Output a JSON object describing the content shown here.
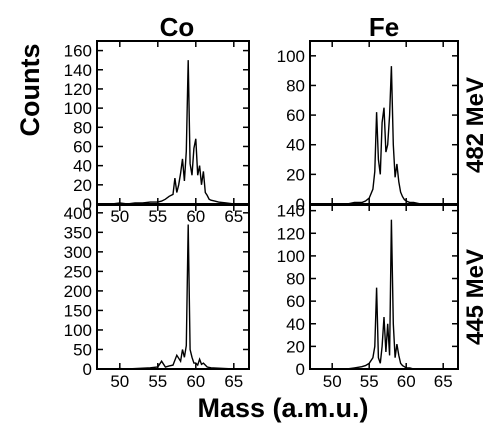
{
  "figure": {
    "column_titles": [
      "Co",
      "Fe"
    ],
    "row_labels": [
      "482 MeV",
      "445 MeV"
    ],
    "ylabel": "Counts",
    "xlabel": "Mass (a.m.u.)"
  },
  "chart_data": [
    {
      "type": "line",
      "title": "Co",
      "row_label": "482 MeV",
      "xlim": [
        47,
        67
      ],
      "ylim": [
        0,
        170
      ],
      "xticks": [
        50,
        55,
        60,
        65
      ],
      "yticks": [
        0,
        20,
        40,
        60,
        80,
        100,
        120,
        140,
        160
      ],
      "show_x_tick_labels": true,
      "series": [
        {
          "x": [
            48,
            49,
            50,
            51,
            52,
            53,
            54,
            55,
            55.5,
            56,
            56.5,
            57,
            57.25,
            57.5,
            57.75,
            58,
            58.25,
            58.5,
            58.75,
            59,
            59.25,
            59.5,
            59.75,
            60,
            60.25,
            60.5,
            60.75,
            61,
            61.25,
            61.5,
            61.75,
            62,
            62.5,
            63,
            64,
            65,
            66
          ],
          "y": [
            0,
            0,
            1,
            0,
            1,
            1,
            2,
            2,
            3,
            5,
            8,
            10,
            27,
            12,
            20,
            32,
            47,
            24,
            55,
            150,
            42,
            30,
            58,
            68,
            30,
            40,
            20,
            34,
            12,
            9,
            5,
            4,
            3,
            2,
            1,
            0,
            0
          ]
        }
      ]
    },
    {
      "type": "line",
      "title": "Fe",
      "row_label": "482 MeV",
      "xlim": [
        47,
        67
      ],
      "ylim": [
        0,
        110
      ],
      "xticks": [
        50,
        55,
        60,
        65
      ],
      "yticks": [
        0,
        20,
        40,
        60,
        80,
        100
      ],
      "show_x_tick_labels": false,
      "series": [
        {
          "x": [
            48,
            50,
            52,
            53,
            54,
            54.5,
            55,
            55.5,
            55.75,
            56,
            56.25,
            56.5,
            56.75,
            57,
            57.25,
            57.5,
            57.75,
            58,
            58.25,
            58.5,
            58.75,
            59,
            59.25,
            59.5,
            59.75,
            60,
            60.5,
            61,
            62,
            63,
            64,
            66
          ],
          "y": [
            0,
            0,
            0,
            1,
            1,
            2,
            4,
            10,
            22,
            62,
            30,
            20,
            55,
            65,
            35,
            40,
            60,
            93,
            40,
            18,
            27,
            15,
            8,
            5,
            3,
            2,
            1,
            1,
            0,
            0,
            0,
            0
          ]
        }
      ]
    },
    {
      "type": "line",
      "title": "",
      "row_label": "445 MeV",
      "xlim": [
        47,
        67
      ],
      "ylim": [
        0,
        420
      ],
      "xticks": [
        50,
        55,
        60,
        65
      ],
      "yticks": [
        0,
        50,
        100,
        150,
        200,
        250,
        300,
        350,
        400
      ],
      "show_x_tick_labels": true,
      "series": [
        {
          "x": [
            48,
            49,
            50,
            51,
            52,
            53,
            54,
            55,
            55.5,
            56,
            56.5,
            57,
            57.5,
            58,
            58.25,
            58.5,
            58.75,
            59,
            59.25,
            59.5,
            59.75,
            60,
            60.25,
            60.5,
            60.75,
            61,
            61.5,
            62,
            63,
            64,
            65,
            66
          ],
          "y": [
            0,
            0,
            1,
            0,
            1,
            2,
            3,
            5,
            20,
            5,
            8,
            10,
            35,
            20,
            50,
            30,
            60,
            370,
            50,
            30,
            15,
            15,
            10,
            25,
            12,
            15,
            5,
            3,
            2,
            1,
            0,
            0
          ]
        }
      ]
    },
    {
      "type": "line",
      "title": "",
      "row_label": "445 MeV",
      "xlim": [
        47,
        67
      ],
      "ylim": [
        0,
        145
      ],
      "xticks": [
        50,
        55,
        60,
        65
      ],
      "yticks": [
        0,
        20,
        40,
        60,
        80,
        100,
        120,
        140
      ],
      "show_x_tick_labels": true,
      "series": [
        {
          "x": [
            48,
            50,
            52,
            53,
            54,
            54.5,
            55,
            55.5,
            55.75,
            56,
            56.25,
            56.5,
            56.75,
            57,
            57.25,
            57.5,
            57.75,
            58,
            58.25,
            58.5,
            58.75,
            59,
            59.25,
            59.5,
            59.75,
            60,
            60.5,
            61,
            62,
            63,
            64,
            66
          ],
          "y": [
            0,
            0,
            0,
            1,
            2,
            3,
            5,
            10,
            20,
            72,
            10,
            5,
            20,
            46,
            15,
            40,
            12,
            132,
            40,
            10,
            22,
            12,
            5,
            3,
            2,
            1,
            1,
            0,
            0,
            0,
            0,
            0
          ]
        }
      ]
    }
  ]
}
